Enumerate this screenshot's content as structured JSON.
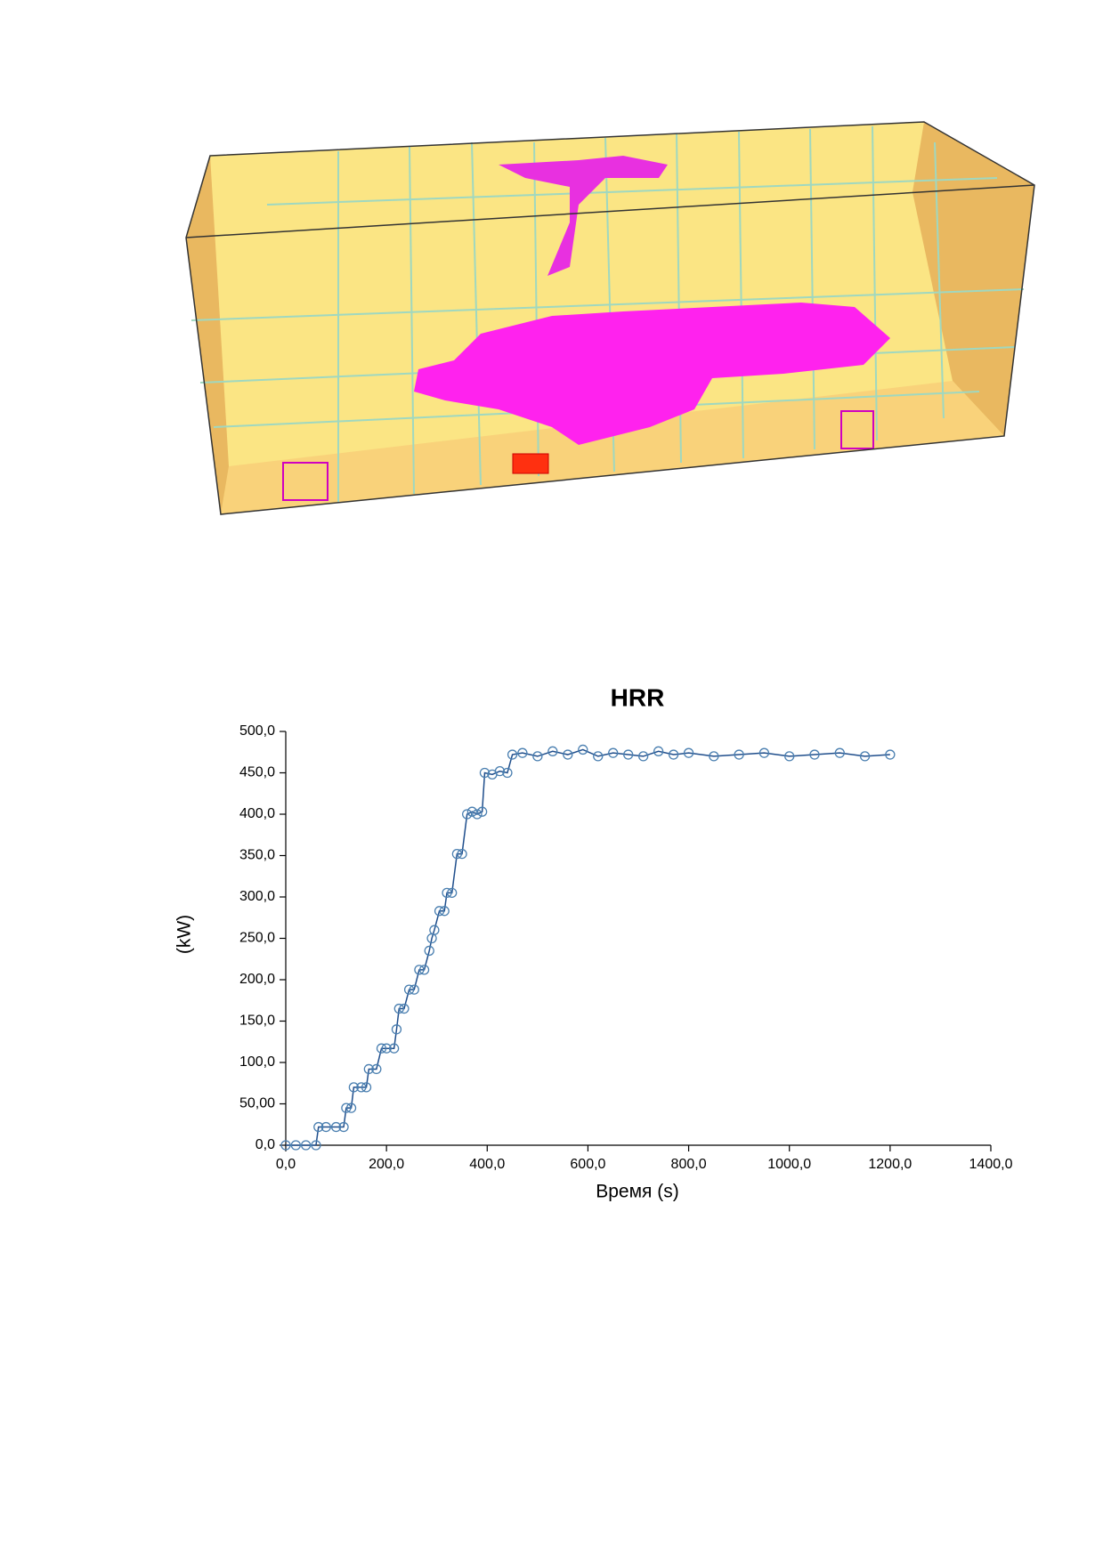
{
  "chart_data": {
    "type": "line",
    "title": "HRR",
    "x_label": "Время (s)",
    "y_label": "(kW)",
    "x": [
      0,
      20,
      40,
      60,
      65,
      80,
      100,
      115,
      120,
      130,
      135,
      150,
      160,
      165,
      180,
      190,
      200,
      215,
      220,
      225,
      235,
      245,
      255,
      265,
      275,
      285,
      290,
      295,
      305,
      315,
      320,
      330,
      340,
      350,
      360,
      370,
      380,
      390,
      395,
      410,
      425,
      440,
      450,
      470,
      500,
      530,
      560,
      590,
      620,
      650,
      680,
      710,
      740,
      770,
      800,
      850,
      900,
      950,
      1000,
      1050,
      1100,
      1150,
      1200
    ],
    "values": [
      0,
      0,
      0,
      0,
      22,
      22,
      22,
      22,
      45,
      45,
      70,
      70,
      70,
      92,
      92,
      117,
      117,
      117,
      140,
      165,
      165,
      188,
      188,
      212,
      212,
      235,
      250,
      260,
      283,
      283,
      305,
      305,
      352,
      352,
      400,
      403,
      400,
      403,
      450,
      448,
      452,
      450,
      472,
      474,
      470,
      476,
      472,
      478,
      470,
      474,
      472,
      470,
      476,
      472,
      474,
      470,
      472,
      474,
      470,
      472,
      474,
      470,
      472
    ],
    "color": "#1f4e8c",
    "marker_color": "#4a7fb0",
    "xlim": [
      0,
      1400
    ],
    "ylim": [
      0,
      500
    ],
    "xticks": [
      {
        "value": 0,
        "label": "0,0"
      },
      {
        "value": 200,
        "label": "200,0"
      },
      {
        "value": 400,
        "label": "400,0"
      },
      {
        "value": 600,
        "label": "600,0"
      },
      {
        "value": 800,
        "label": "800,0"
      },
      {
        "value": 1000,
        "label": "1000,0"
      },
      {
        "value": 1200,
        "label": "1200,0"
      },
      {
        "value": 1400,
        "label": "1400,0"
      }
    ],
    "yticks": [
      {
        "value": 0,
        "label": "0,0"
      },
      {
        "value": 50,
        "label": "50,00"
      },
      {
        "value": 100,
        "label": "100,0"
      },
      {
        "value": 150,
        "label": "150,0"
      },
      {
        "value": 200,
        "label": "200,0"
      },
      {
        "value": 250,
        "label": "250,0"
      },
      {
        "value": 300,
        "label": "300,0"
      },
      {
        "value": 350,
        "label": "350,0"
      },
      {
        "value": 400,
        "label": "400,0"
      },
      {
        "value": 450,
        "label": "450,0"
      },
      {
        "value": 500,
        "label": "500,0"
      }
    ],
    "grid": false
  }
}
